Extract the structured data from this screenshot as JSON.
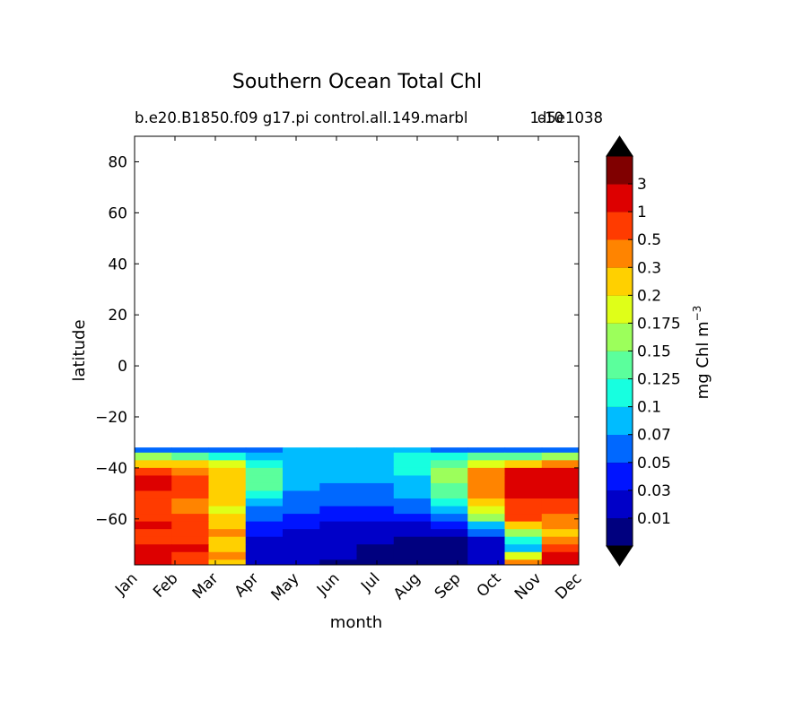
{
  "chart_data": {
    "type": "heatmap",
    "title": "Southern Ocean Total Chl",
    "subtitle_left": "b.e20.B1850.f09 g17.pi control.all.149.marbl",
    "subtitle_right": "d5e1038",
    "subtitle_overlap": "1-10",
    "xlabel": "month",
    "ylabel": "latitude",
    "x_ticks": [
      "Jan",
      "Feb",
      "Mar",
      "Apr",
      "May",
      "Jun",
      "Jul",
      "Aug",
      "Sep",
      "Oct",
      "Nov",
      "Dec"
    ],
    "y_ticks": [
      80,
      60,
      40,
      20,
      0,
      -20,
      -40,
      -60
    ],
    "y_tick_labels": [
      "80",
      "60",
      "40",
      "20",
      "0",
      "−20",
      "−40",
      "−60"
    ],
    "ylim": [
      -78,
      90
    ],
    "data_lat_range": [
      -78,
      -32
    ],
    "colorbar": {
      "label": "mg Chl m",
      "label_superscript": "−3",
      "levels": [
        "0.01",
        "0.03",
        "0.05",
        "0.07",
        "0.1",
        "0.125",
        "0.15",
        "0.175",
        "0.2",
        "0.3",
        "0.5",
        "1",
        "3"
      ],
      "colors": [
        "#00007f",
        "#0000c8",
        "#0014ff",
        "#0068ff",
        "#00bcff",
        "#17ffe0",
        "#5bff9c",
        "#9cff5b",
        "#dfff18",
        "#ffd000",
        "#ff8400",
        "#ff3b00",
        "#dd0000",
        "#800000"
      ],
      "extend": "both",
      "over_color": "#000000",
      "under_color": "#000000"
    },
    "field_rows": {
      "lat": [
        -32,
        -34,
        -37,
        -40,
        -43,
        -46,
        -49,
        -52,
        -55,
        -58,
        -61,
        -64,
        -67,
        -70,
        -73,
        -76,
        -78
      ],
      "values": [
        [
          3,
          3,
          3,
          3,
          4,
          4,
          4,
          4,
          3,
          3,
          3,
          3
        ],
        [
          7,
          6,
          5,
          4,
          4,
          4,
          4,
          5,
          5,
          6,
          6,
          7
        ],
        [
          9,
          9,
          8,
          5,
          4,
          4,
          4,
          5,
          6,
          8,
          9,
          10
        ],
        [
          11,
          10,
          9,
          6,
          4,
          4,
          4,
          5,
          7,
          10,
          12,
          12
        ],
        [
          12,
          11,
          9,
          6,
          4,
          4,
          4,
          4,
          7,
          10,
          12,
          12
        ],
        [
          12,
          11,
          9,
          6,
          4,
          3,
          3,
          4,
          6,
          10,
          12,
          12
        ],
        [
          11,
          11,
          9,
          5,
          3,
          3,
          3,
          4,
          6,
          10,
          12,
          12
        ],
        [
          11,
          10,
          9,
          4,
          3,
          3,
          3,
          3,
          5,
          9,
          11,
          11
        ],
        [
          11,
          10,
          8,
          3,
          3,
          2,
          2,
          3,
          4,
          8,
          11,
          11
        ],
        [
          11,
          11,
          9,
          3,
          2,
          2,
          2,
          2,
          3,
          7,
          11,
          10
        ],
        [
          12,
          11,
          9,
          2,
          2,
          1,
          1,
          1,
          2,
          4,
          9,
          10
        ],
        [
          11,
          11,
          10,
          2,
          1,
          1,
          1,
          1,
          1,
          3,
          7,
          9
        ],
        [
          11,
          11,
          9,
          1,
          1,
          1,
          1,
          0,
          0,
          1,
          5,
          10
        ],
        [
          12,
          12,
          9,
          1,
          1,
          1,
          0,
          0,
          0,
          1,
          4,
          11
        ],
        [
          12,
          11,
          10,
          1,
          1,
          1,
          0,
          0,
          0,
          1,
          8,
          12
        ],
        [
          12,
          11,
          9,
          1,
          1,
          0,
          0,
          0,
          0,
          1,
          10,
          12
        ],
        [
          12,
          11,
          9,
          1,
          1,
          0,
          0,
          0,
          0,
          1,
          11,
          12
        ]
      ]
    }
  }
}
